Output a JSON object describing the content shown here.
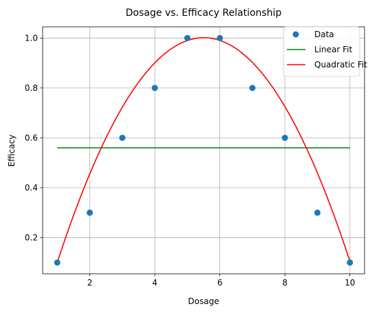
{
  "chart_data": {
    "type": "scatter",
    "title": "Dosage vs. Efficacy Relationship",
    "xlabel": "Dosage",
    "ylabel": "Efficacy",
    "xlim": [
      0.55,
      10.45
    ],
    "ylim": [
      0.055,
      1.045
    ],
    "x_ticks": [
      2,
      4,
      6,
      8,
      10
    ],
    "x_tick_labels": [
      "2",
      "4",
      "6",
      "8",
      "10"
    ],
    "y_ticks": [
      0.2,
      0.4,
      0.6,
      0.8,
      1.0
    ],
    "y_tick_labels": [
      "0.2",
      "0.4",
      "0.6",
      "0.8",
      "1.0"
    ],
    "grid": true,
    "legend_position": "top-right",
    "series": [
      {
        "name": "Data",
        "kind": "scatter",
        "color": "#1f77b4",
        "x": [
          1,
          2,
          3,
          4,
          5,
          6,
          7,
          8,
          9,
          10
        ],
        "y": [
          0.1,
          0.3,
          0.6,
          0.8,
          1.0,
          1.0,
          0.8,
          0.6,
          0.3,
          0.1
        ]
      },
      {
        "name": "Linear Fit",
        "kind": "line",
        "color": "#008000",
        "x": [
          1,
          10
        ],
        "y": [
          0.56,
          0.56
        ]
      },
      {
        "name": "Quadratic Fit",
        "kind": "curve",
        "color": "#ff0000",
        "x_range": [
          1,
          10
        ],
        "coefficients": {
          "a": -0.0444,
          "b": 0.4889,
          "c": -0.3444
        }
      }
    ]
  }
}
